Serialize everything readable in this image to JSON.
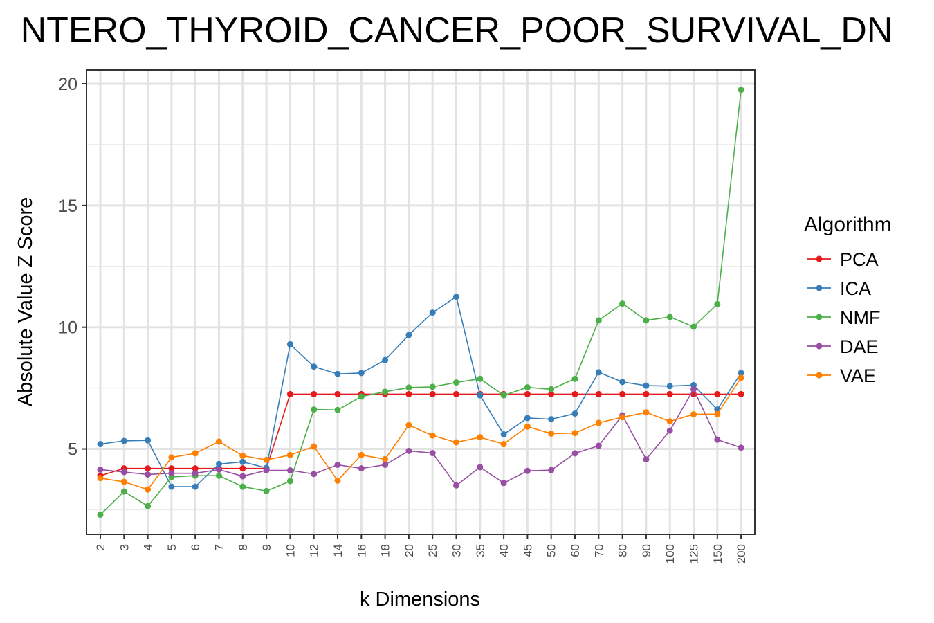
{
  "chart_data": {
    "type": "line",
    "title": "NTERO_THYROID_CANCER_POOR_SURVIVAL_DN",
    "xlabel": "k Dimensions",
    "ylabel": "Absolute Value Z Score",
    "categories": [
      "2",
      "3",
      "4",
      "5",
      "6",
      "7",
      "8",
      "9",
      "10",
      "12",
      "14",
      "16",
      "18",
      "20",
      "25",
      "30",
      "35",
      "40",
      "45",
      "50",
      "60",
      "70",
      "80",
      "90",
      "100",
      "125",
      "150",
      "200"
    ],
    "ylim": [
      1,
      21
    ],
    "yticks": [
      "5",
      "10",
      "15",
      "20"
    ],
    "grid": true,
    "legend": {
      "title": "Algorithm",
      "position": "right"
    },
    "series": [
      {
        "name": "PCA",
        "color": "#e41a1c",
        "values": [
          3.9,
          4.2,
          4.2,
          4.2,
          4.2,
          4.2,
          4.2,
          4.2,
          7.25,
          7.25,
          7.25,
          7.25,
          7.25,
          7.25,
          7.25,
          7.25,
          7.25,
          7.25,
          7.25,
          7.25,
          7.25,
          7.25,
          7.25,
          7.25,
          7.25,
          7.25,
          7.25,
          7.25
        ]
      },
      {
        "name": "ICA",
        "color": "#377eb8",
        "values": [
          5.2,
          5.33,
          5.35,
          3.45,
          3.45,
          4.38,
          4.47,
          4.22,
          9.3,
          8.38,
          8.08,
          8.12,
          8.65,
          9.68,
          10.6,
          11.25,
          7.2,
          5.6,
          6.27,
          6.22,
          6.45,
          8.15,
          7.75,
          7.6,
          7.58,
          7.62,
          6.62,
          8.12
        ]
      },
      {
        "name": "NMF",
        "color": "#4daf4a",
        "values": [
          2.3,
          3.25,
          2.65,
          3.85,
          3.9,
          3.9,
          3.45,
          3.27,
          3.68,
          6.62,
          6.6,
          7.15,
          7.35,
          7.52,
          7.55,
          7.73,
          7.88,
          7.2,
          7.53,
          7.45,
          7.88,
          10.28,
          10.97,
          10.28,
          10.42,
          10.02,
          10.95,
          19.75
        ]
      },
      {
        "name": "DAE",
        "color": "#984ea3",
        "values": [
          4.15,
          4.05,
          3.95,
          4.0,
          4.0,
          4.15,
          3.88,
          4.12,
          4.12,
          3.97,
          4.35,
          4.2,
          4.35,
          4.92,
          4.83,
          3.5,
          4.25,
          3.6,
          4.1,
          4.13,
          4.82,
          5.13,
          6.38,
          4.57,
          5.75,
          7.45,
          5.38,
          5.05
        ]
      },
      {
        "name": "VAE",
        "color": "#ff7f00",
        "values": [
          3.8,
          3.65,
          3.33,
          4.65,
          4.82,
          5.3,
          4.72,
          4.55,
          4.75,
          5.1,
          3.7,
          4.75,
          4.58,
          5.98,
          5.55,
          5.27,
          5.48,
          5.2,
          5.92,
          5.63,
          5.65,
          6.07,
          6.3,
          6.5,
          6.13,
          6.42,
          6.43,
          7.92
        ]
      }
    ]
  }
}
